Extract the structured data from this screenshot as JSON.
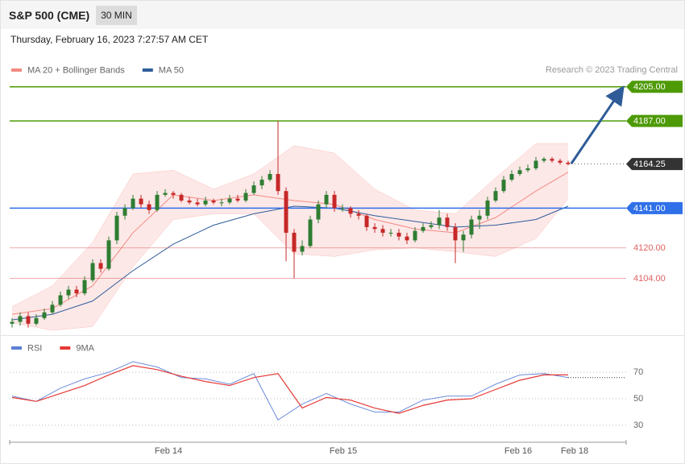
{
  "header": {
    "title": "S&P 500 (CME)",
    "interval": "30 MIN"
  },
  "timestamp": "Thursday, February 16, 2023 7:27:57 AM CET",
  "credit": "Research © 2023 Trading Central",
  "chart_data": [
    {
      "type": "candlestick",
      "xlim": [
        -0.3,
        76.2
      ],
      "ylim": [
        4074,
        4210
      ],
      "up_color": "#2e7d32",
      "down_color": "#c62828",
      "open": [
        4080,
        4081,
        4084,
        4080,
        4083,
        4086,
        4090,
        4095,
        4098,
        4096,
        4103,
        4112,
        4109,
        4124,
        4137,
        4141,
        4146,
        4143,
        4140,
        4148,
        4149,
        4148,
        4145,
        4144,
        4143,
        4145,
        4144,
        4144,
        4146,
        4145,
        4149,
        4153,
        4156,
        4159,
        4150,
        4128,
        4118,
        4121,
        4135,
        4143,
        4148,
        4141,
        4141,
        4138,
        4137,
        4131,
        4130,
        4128,
        4128,
        4126,
        4124,
        4129,
        4131,
        4132,
        4136,
        4131,
        4124,
        4127,
        4135,
        4137,
        4145,
        4150,
        4156,
        4159,
        4161,
        4162,
        4166,
        4167,
        4166,
        4165
      ],
      "high": [
        4083,
        4086,
        4086,
        4085,
        4088,
        4092,
        4097,
        4100,
        4100,
        4105,
        4114,
        4114,
        4126,
        4139,
        4143,
        4148,
        4148,
        4145,
        4150,
        4151,
        4150,
        4149,
        4147,
        4146,
        4147,
        4146,
        4146,
        4148,
        4148,
        4151,
        4155,
        4158,
        4161,
        4187,
        4152,
        4130,
        4124,
        4137,
        4145,
        4150,
        4150,
        4143,
        4142,
        4140,
        4138,
        4133,
        4132,
        4130,
        4130,
        4128,
        4131,
        4133,
        4134,
        4140,
        4138,
        4133,
        4129,
        4137,
        4140,
        4147,
        4152,
        4158,
        4161,
        4163,
        4164,
        4168,
        4168,
        4168,
        4167,
        4166
      ],
      "low": [
        4078,
        4079,
        4078,
        4079,
        4082,
        4085,
        4089,
        4093,
        4094,
        4095,
        4102,
        4107,
        4108,
        4122,
        4135,
        4140,
        4141,
        4138,
        4139,
        4147,
        4146,
        4144,
        4143,
        4142,
        4142,
        4143,
        4142,
        4143,
        4144,
        4144,
        4148,
        4151,
        4155,
        4148,
        4113,
        4104,
        4116,
        4120,
        4133,
        4141,
        4139,
        4139,
        4136,
        4135,
        4129,
        4128,
        4126,
        4126,
        4124,
        4122,
        4123,
        4128,
        4130,
        4130,
        4129,
        4112,
        4118,
        4125,
        4130,
        4135,
        4144,
        4149,
        4155,
        4158,
        4160,
        4161,
        4165,
        4165,
        4164,
        4163.5
      ],
      "close": [
        4081,
        4084,
        4080,
        4083,
        4086,
        4090,
        4095,
        4098,
        4096,
        4103,
        4112,
        4109,
        4124,
        4137,
        4141,
        4146,
        4143,
        4140,
        4148,
        4149,
        4148,
        4145,
        4144,
        4143,
        4145,
        4144,
        4144,
        4146,
        4145,
        4149,
        4153,
        4156,
        4159,
        4150,
        4128,
        4118,
        4121,
        4135,
        4143,
        4148,
        4141,
        4141,
        4138,
        4137,
        4131,
        4130,
        4128,
        4128,
        4126,
        4124,
        4129,
        4131,
        4132,
        4136,
        4131,
        4124,
        4127,
        4135,
        4137,
        4145,
        4150,
        4156,
        4159,
        4161,
        4162,
        4166,
        4167,
        4166,
        4165,
        4164.25
      ],
      "bands": {
        "name": "MA 20 + Bollinger Bands",
        "color": "#f28b82",
        "fill": "#fde2e2",
        "x": [
          0,
          5,
          10,
          15,
          20,
          25,
          30,
          35,
          40,
          45,
          50,
          55,
          60,
          65,
          69
        ],
        "upper": [
          4089,
          4100,
          4123,
          4159,
          4161,
          4151,
          4159,
          4174,
          4170,
          4151,
          4140,
          4138,
          4157,
          4175,
          4175
        ],
        "middle": [
          4085,
          4088,
          4100,
          4128,
          4148,
          4145,
          4148,
          4145,
          4143,
          4135,
          4130,
          4128,
          4136,
          4150,
          4160
        ],
        "lower": [
          4080.6,
          4076.5,
          4078.5,
          4110,
          4135,
          4138,
          4138,
          4117,
          4115.5,
          4119,
          4120,
          4118,
          4115.5,
          4125,
          4146
        ]
      },
      "series": [
        {
          "name": "MA 50",
          "color": "#2f5c99",
          "x": [
            0,
            5,
            10,
            15,
            20,
            25,
            30,
            35,
            40,
            45,
            50,
            55,
            60,
            65,
            69
          ],
          "values": [
            4082,
            4085,
            4092,
            4108,
            4122,
            4132,
            4138,
            4142,
            4141,
            4137,
            4134,
            4131,
            4132,
            4135,
            4142
          ]
        }
      ],
      "levels": [
        {
          "value": 4205,
          "label": "4205.00",
          "color": "#4e9a06",
          "line": "solid",
          "style": "box"
        },
        {
          "value": 4187,
          "label": "4187.00",
          "color": "#4e9a06",
          "line": "solid",
          "style": "box"
        },
        {
          "value": 4164.25,
          "label": "4164.25",
          "color": "#333333",
          "line": "dotted",
          "style": "box"
        },
        {
          "value": 4141,
          "label": "4141.00",
          "color": "#2f6fe8",
          "line": "solid",
          "style": "box"
        },
        {
          "value": 4120,
          "label": "4120.00",
          "color": "#e06060",
          "line": "solid",
          "style": "text"
        },
        {
          "value": 4104,
          "label": "4104.00",
          "color": "#e06060",
          "line": "solid",
          "style": "text"
        }
      ]
    },
    {
      "type": "line",
      "xlim": [
        -0.3,
        76.2
      ],
      "ylim": [
        19,
        95
      ],
      "yticks": [
        70,
        50,
        30
      ],
      "xticks": [
        {
          "value": 19.4,
          "label": "Feb 14"
        },
        {
          "value": 41.1,
          "label": "Feb 15"
        },
        {
          "value": 62.8,
          "label": "Feb 16"
        },
        {
          "value": 69.8,
          "label": "Feb 18"
        }
      ],
      "x": [
        0,
        3,
        6,
        9,
        12,
        15,
        18,
        21,
        24,
        27,
        30,
        33,
        36,
        39,
        42,
        45,
        48,
        51,
        54,
        57,
        60,
        63,
        66,
        69
      ],
      "series": [
        {
          "name": "RSI",
          "color": "#5b7fd6",
          "values": [
            52,
            48,
            58,
            65,
            70,
            78,
            74,
            66,
            65,
            61,
            69,
            34,
            46,
            54,
            46,
            40,
            40,
            49,
            52,
            52,
            61,
            68,
            69,
            66
          ]
        },
        {
          "name": "9MA",
          "color": "#e53935",
          "values": [
            51,
            48,
            54,
            60,
            68,
            75,
            72,
            67,
            63,
            60,
            66,
            69,
            43,
            51,
            49,
            43,
            39,
            45,
            49,
            50,
            57,
            64,
            68,
            68
          ]
        }
      ]
    }
  ]
}
